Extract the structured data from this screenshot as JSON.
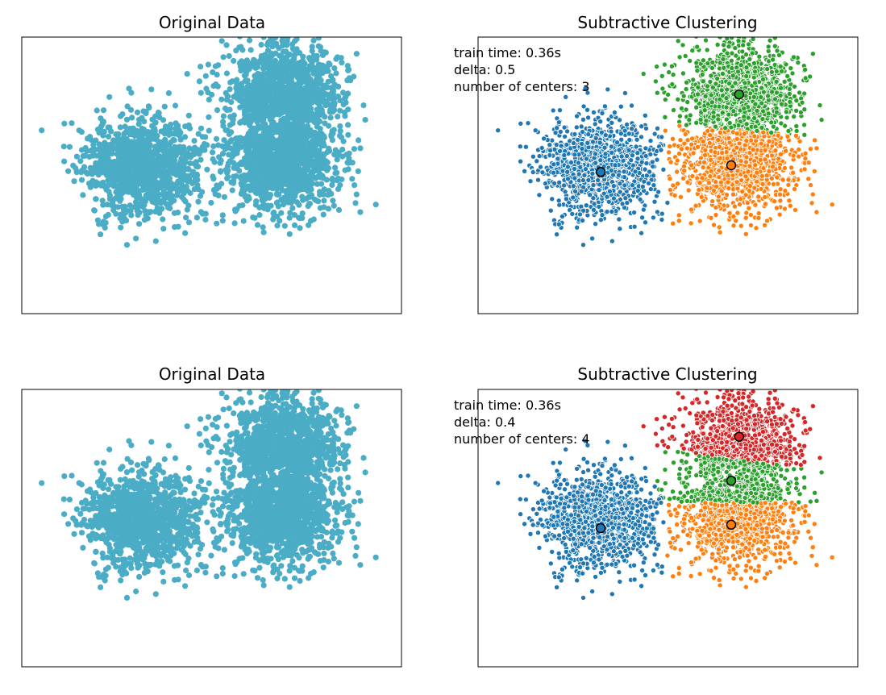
{
  "chart_data": [
    {
      "type": "scatter",
      "title": "Original Data",
      "xlabel": "",
      "ylabel": "",
      "ticks": "hidden",
      "xlim": [
        -4.8,
        4.8
      ],
      "ylim": [
        -4.6,
        3.6
      ],
      "point_color": "#4bacc6",
      "blobs": [
        {
          "center": [
            -1.8,
            -0.2
          ],
          "std": 0.72,
          "n": 1100,
          "seed": 11
        },
        {
          "center": [
            1.7,
            -0.2
          ],
          "std": 0.72,
          "n": 1100,
          "seed": 23
        },
        {
          "center": [
            1.8,
            2.0
          ],
          "std": 0.72,
          "n": 1100,
          "seed": 37
        }
      ],
      "annotations": []
    },
    {
      "type": "scatter",
      "title": "Subtractive Clustering",
      "xlabel": "",
      "ylabel": "",
      "ticks": "hidden",
      "xlim": [
        -4.8,
        4.8
      ],
      "ylim": [
        -4.6,
        3.6
      ],
      "annotations": [
        "train time: 0.36s",
        "delta: 0.5",
        "number of centers: 3"
      ],
      "cluster_colors": [
        "#1f77b4",
        "#ff7f0e",
        "#2ca02c"
      ],
      "centers": [
        [
          -1.7,
          -0.4
        ],
        [
          1.6,
          -0.2
        ],
        [
          1.8,
          1.9
        ]
      ],
      "blobs": [
        {
          "center": [
            -1.8,
            -0.2
          ],
          "std": 0.72,
          "n": 1100,
          "seed": 11
        },
        {
          "center": [
            1.7,
            -0.2
          ],
          "std": 0.72,
          "n": 1100,
          "seed": 23
        },
        {
          "center": [
            1.8,
            2.0
          ],
          "std": 0.72,
          "n": 1100,
          "seed": 37
        }
      ]
    },
    {
      "type": "scatter",
      "title": "Original Data",
      "xlabel": "",
      "ylabel": "",
      "ticks": "hidden",
      "xlim": [
        -4.8,
        4.8
      ],
      "ylim": [
        -4.6,
        3.6
      ],
      "point_color": "#4bacc6",
      "blobs": [
        {
          "center": [
            -1.8,
            -0.2
          ],
          "std": 0.72,
          "n": 1100,
          "seed": 11
        },
        {
          "center": [
            1.7,
            -0.2
          ],
          "std": 0.72,
          "n": 1100,
          "seed": 23
        },
        {
          "center": [
            1.8,
            2.0
          ],
          "std": 0.72,
          "n": 1100,
          "seed": 37
        }
      ],
      "annotations": []
    },
    {
      "type": "scatter",
      "title": "Subtractive Clustering",
      "xlabel": "",
      "ylabel": "",
      "ticks": "hidden",
      "xlim": [
        -4.8,
        4.8
      ],
      "ylim": [
        -4.6,
        3.6
      ],
      "annotations": [
        "train time: 0.36s",
        "delta: 0.4",
        "number of centers: 4"
      ],
      "cluster_colors": [
        "#1f77b4",
        "#ff7f0e",
        "#2ca02c",
        "#d62728"
      ],
      "centers": [
        [
          -1.7,
          -0.5
        ],
        [
          1.6,
          -0.4
        ],
        [
          1.6,
          0.9
        ],
        [
          1.8,
          2.2
        ]
      ],
      "blobs": [
        {
          "center": [
            -1.8,
            -0.2
          ],
          "std": 0.72,
          "n": 1100,
          "seed": 11
        },
        {
          "center": [
            1.7,
            -0.2
          ],
          "std": 0.72,
          "n": 1100,
          "seed": 23
        },
        {
          "center": [
            1.8,
            2.0
          ],
          "std": 0.72,
          "n": 1100,
          "seed": 37
        }
      ]
    }
  ]
}
